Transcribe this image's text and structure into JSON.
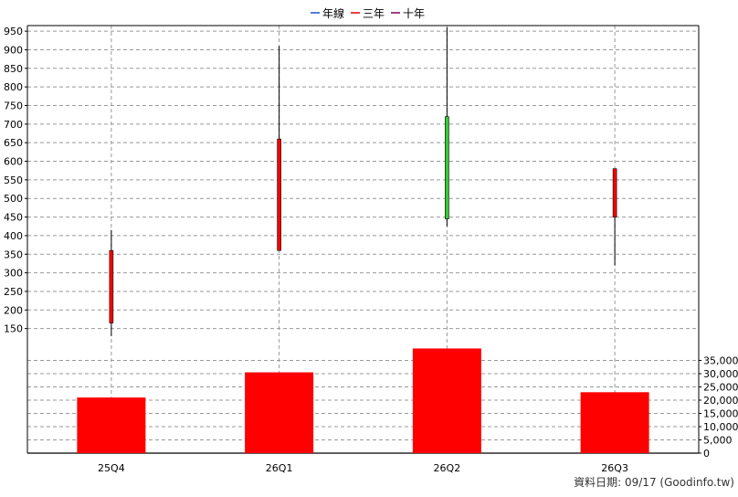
{
  "legend": [
    {
      "label": "年線",
      "color": "#1f4fd1"
    },
    {
      "label": "三年",
      "color": "#e00000"
    },
    {
      "label": "十年",
      "color": "#800060"
    }
  ],
  "footer": {
    "source": "資料日期: 09/17  (Goodinfo.tw)"
  },
  "colors": {
    "rise": "#ff0000",
    "fall": "#33cc33",
    "wick": "#000000",
    "volume": "#ff0000",
    "grid": "#999999"
  },
  "chart_data": [
    {
      "type": "candlestick",
      "categories": [
        "25Q4",
        "26Q1",
        "26Q2",
        "26Q3"
      ],
      "ohlc": [
        {
          "open": 165,
          "high": 415,
          "low": 130,
          "close": 360,
          "direction": "up"
        },
        {
          "open": 360,
          "high": 910,
          "low": 360,
          "close": 660,
          "direction": "up"
        },
        {
          "open": 720,
          "high": 960,
          "low": 425,
          "close": 445,
          "direction": "down"
        },
        {
          "open": 450,
          "high": 580,
          "low": 320,
          "close": 580,
          "direction": "up"
        }
      ],
      "y_ticks": [
        150,
        200,
        250,
        300,
        350,
        400,
        450,
        500,
        550,
        600,
        650,
        700,
        750,
        800,
        850,
        900,
        950
      ],
      "ylim": [
        100,
        965
      ],
      "grid": true
    },
    {
      "type": "bar",
      "categories": [
        "25Q4",
        "26Q1",
        "26Q2",
        "26Q3"
      ],
      "values": [
        21000,
        30500,
        39500,
        23000
      ],
      "y_ticks": [
        0,
        5000,
        10000,
        15000,
        20000,
        25000,
        30000,
        35000
      ],
      "y_tick_labels": [
        "0",
        "5,000",
        "10,000",
        "15,000",
        "20,000",
        "25,000",
        "30,000",
        "35,000"
      ],
      "ylim": [
        0,
        40000
      ],
      "grid": true
    }
  ]
}
